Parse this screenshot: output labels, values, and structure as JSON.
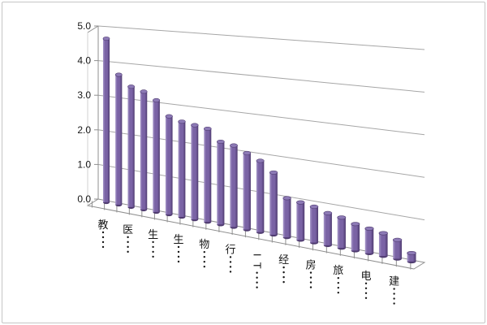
{
  "chart_data": {
    "type": "bar",
    "subtype": "3d-cylinder",
    "title": "",
    "xlabel": "",
    "ylabel": "",
    "n_bars": 24,
    "values": [
      4.7,
      3.7,
      3.4,
      3.3,
      3.1,
      2.7,
      2.6,
      2.55,
      2.5,
      2.2,
      2.15,
      2.0,
      1.85,
      1.6,
      1.0,
      0.95,
      0.9,
      0.8,
      0.75,
      0.65,
      0.6,
      0.55,
      0.45,
      0.2
    ],
    "categories": [
      "教",
      "医",
      "生",
      "生",
      "物",
      "行",
      "IT",
      "经",
      "房",
      "旅",
      "电",
      "建"
    ],
    "labels_truncated": true,
    "truncation_dot_count": 4,
    "label_every_nth_bar": 2,
    "ylim": [
      0,
      5
    ],
    "ytick_labels": [
      "0.0",
      "1.0",
      "2.0",
      "3.0",
      "4.0",
      "5.0"
    ],
    "grid": true,
    "legend": false,
    "colors": {
      "bar_highlight": "#a595c8",
      "bar_mid": "#7a63a5",
      "bar_shadow": "#4f3b70",
      "bar_cap": "#8d7ab6",
      "gridline": "#a6a6a6",
      "axis": "#8f8f8f",
      "wall_edge": "#d2d2d2",
      "text": "#161616",
      "frame_border": "#c5c5c5",
      "background": "#ffffff"
    }
  }
}
